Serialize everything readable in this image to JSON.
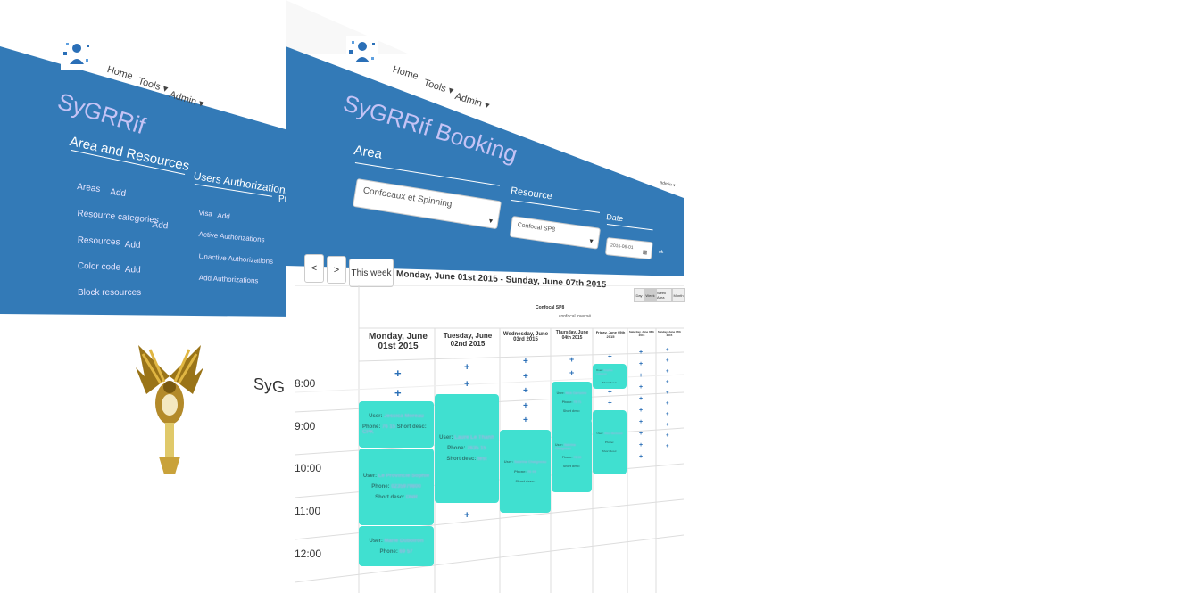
{
  "left_app": {
    "nav": {
      "home": "Home",
      "tools": "Tools",
      "admin": "Admin"
    },
    "brand": "SyGRRif",
    "area_resources": {
      "title": "Area and Resources",
      "items": [
        {
          "label": "Areas",
          "add": "Add"
        },
        {
          "label": "Resource categories",
          "add": "Add"
        },
        {
          "label": "Resources",
          "add": "Add"
        },
        {
          "label": "Color code",
          "add": "Add"
        },
        {
          "label": "Block resources",
          "add": ""
        }
      ]
    },
    "users_auth": {
      "title": "Users Authorizations",
      "items": [
        {
          "label": "Visa",
          "add": "Add"
        },
        {
          "label": "Active Authorizations",
          "add": ""
        },
        {
          "label": "Unactive Authorizations",
          "add": ""
        },
        {
          "label": "Add Authorizations",
          "add": ""
        }
      ]
    },
    "next_col_title": "Pr"
  },
  "tagline": "SyGRR",
  "booking_app": {
    "nav": {
      "home": "Home",
      "tools": "Tools",
      "admin": "Admin",
      "user": "admin"
    },
    "brand": "SyGRRif Booking",
    "area_label": "Area",
    "area_value": "Confocaux et Spinning",
    "resource_label": "Resource",
    "resource_value": "Confocal SP8",
    "date_label": "Date",
    "date_value": "2015-06-01",
    "toolbar": {
      "prev": "<",
      "next": ">",
      "this_week": "This week",
      "range": "Monday, June 01st 2015 - Sunday, June 07th 2015",
      "views": [
        "Day",
        "Week",
        "Week Area",
        "Month"
      ]
    },
    "calendar": {
      "resource_title": "Confocal SP8",
      "resource_subtitle": "confocal inversé",
      "days": [
        "Monday, June 01st 2015",
        "Tuesday, June 02nd 2015",
        "Wednesday, June 03rd 2015",
        "Thursday, June 04th 2015",
        "Friday, June 05th 2015",
        "Saturday, June 06th 2015",
        "Sunday, June 07th 2015"
      ],
      "times": [
        "8:00",
        "9:00",
        "10:00",
        "11:00",
        "12:00"
      ],
      "events": [
        {
          "user_label": "User:",
          "user": "Jessica Moreau",
          "phone_label": "Phone:",
          "phone": "76 15",
          "desc_label": "Short desc:",
          "desc": "CPK"
        },
        {
          "user_label": "User:",
          "user": "Laure Le Thanh",
          "phone_label": "Phone:",
          "phone": "7635 15",
          "desc_label": "Short desc:",
          "desc": "test"
        },
        {
          "user_label": "User:",
          "user": "Le Provincie Sophie",
          "phone_label": "Phone:",
          "phone": "0235979800",
          "desc_label": "Short desc:",
          "desc": "DNR"
        },
        {
          "user_label": "User:",
          "user": "Marie Duboiron",
          "phone_label": "Phone:",
          "phone": "69 57",
          "desc_label": "",
          "desc": ""
        },
        {
          "user_label": "User:",
          "user": "Sabrina Chaigneau",
          "phone_label": "Phone:",
          "phone": "76 09",
          "desc_label": "Short desc:",
          "desc": ""
        },
        {
          "user_label": "User:",
          "user": "Nick Carronne",
          "phone_label": "Phone:",
          "phone": "75 71",
          "desc_label": "Short desc:",
          "desc": ""
        },
        {
          "user_label": "User:",
          "user": "Sabrina Chaigneau",
          "phone_label": "Phone:",
          "phone": "76 09",
          "desc_label": "Short desc:",
          "desc": ""
        },
        {
          "user_label": "User:",
          "user": "Sophie Lebaron",
          "phone_label": "Phone:",
          "phone": "60 11",
          "desc_label": "Short desc:",
          "desc": ""
        },
        {
          "user_label": "User:",
          "user": "Alice Bertrand",
          "phone_label": "Phone:",
          "phone": "",
          "desc_label": "Short desc:",
          "desc": ""
        }
      ],
      "add_symbol": "+"
    }
  }
}
